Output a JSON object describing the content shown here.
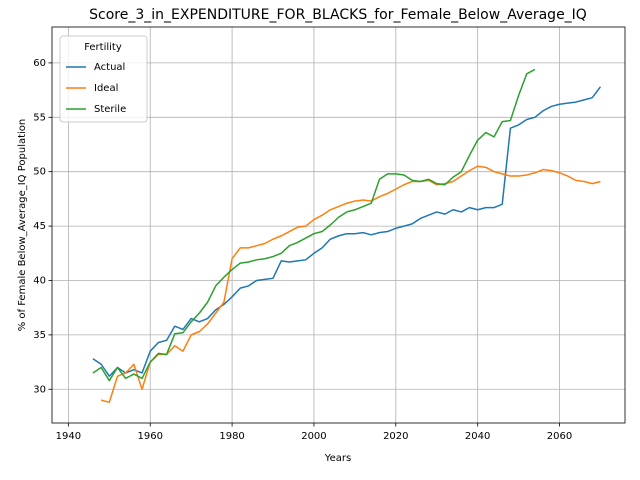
{
  "chart_data": {
    "type": "line",
    "title": "Score_3_in_EXPENDITURE_FOR_BLACKS_for_Female_Below_Average_IQ",
    "x_label": "Years",
    "y_label": "% of Female Below_Average_IQ Population",
    "legend_title": "Fertility",
    "legend_loc": "upper left",
    "grid": true,
    "x": [
      1946,
      1948,
      1950,
      1952,
      1954,
      1956,
      1958,
      1960,
      1962,
      1964,
      1966,
      1968,
      1970,
      1972,
      1974,
      1976,
      1978,
      1980,
      1982,
      1984,
      1986,
      1988,
      1990,
      1992,
      1994,
      1996,
      1998,
      2000,
      2002,
      2004,
      2006,
      2008,
      2010,
      2012,
      2014,
      2016,
      2018,
      2020,
      2022,
      2024,
      2026,
      2028,
      2030,
      2032,
      2034,
      2036,
      2038,
      2040,
      2042,
      2044,
      2046,
      2048,
      2050,
      2052,
      2054,
      2056,
      2058,
      2060,
      2062,
      2064,
      2066,
      2068,
      2070
    ],
    "series": [
      {
        "name": "Actual",
        "color": "#1f77b4",
        "values": [
          32.8,
          32.3,
          31.2,
          32,
          31.5,
          31.8,
          31.5,
          33.5,
          34.3,
          34.5,
          35.8,
          35.5,
          36.5,
          36.2,
          36.5,
          37.3,
          37.8,
          38.5,
          39.3,
          39.5,
          40,
          40.1,
          40.2,
          41.8,
          41.7,
          41.8,
          41.9,
          42.5,
          43,
          43.8,
          44.1,
          44.3,
          44.3,
          44.4,
          44.2,
          44.4,
          44.5,
          44.8,
          45,
          45.2,
          45.7,
          46,
          46.3,
          46.1,
          46.5,
          46.3,
          46.7,
          46.5,
          46.7,
          46.7,
          47,
          54,
          54.3,
          54.8,
          55,
          55.6,
          56,
          56.2,
          56.3,
          56.4,
          56.6,
          56.8,
          57.8
        ]
      },
      {
        "name": "Ideal",
        "color": "#ff7f0e",
        "values": [
          null,
          29,
          28.8,
          31.2,
          31.5,
          32.3,
          30,
          32.5,
          33.2,
          33.2,
          34,
          33.5,
          35,
          35.3,
          36,
          37,
          38,
          42,
          43,
          43,
          43.2,
          43.4,
          43.8,
          44.1,
          44.5,
          44.9,
          45,
          45.6,
          46,
          46.5,
          46.8,
          47.1,
          47.3,
          47.4,
          47.3,
          47.7,
          48,
          48.4,
          48.8,
          49.1,
          49.1,
          49.2,
          48.8,
          48.9,
          49.1,
          49.6,
          50.1,
          50.5,
          50.4,
          50,
          49.8,
          49.6,
          49.6,
          49.7,
          49.9,
          50.2,
          50.1,
          49.9,
          49.6,
          49.2,
          49.1,
          48.9,
          49.1
        ]
      },
      {
        "name": "Sterile",
        "color": "#2ca02c",
        "values": [
          31.5,
          32,
          30.8,
          32,
          31,
          31.4,
          31,
          32.5,
          33.3,
          33.2,
          35.1,
          35.2,
          36.2,
          37,
          38,
          39.5,
          40.3,
          41,
          41.6,
          41.7,
          41.9,
          42,
          42.2,
          42.5,
          43.2,
          43.5,
          43.9,
          44.3,
          44.5,
          45.1,
          45.8,
          46.3,
          46.5,
          46.8,
          47.1,
          49.3,
          49.8,
          49.8,
          49.7,
          49.2,
          49.1,
          49.3,
          48.9,
          48.8,
          49.5,
          50,
          51.5,
          52.9,
          53.6,
          53.2,
          54.6,
          54.7,
          57,
          59,
          59.4,
          null,
          null,
          null,
          null,
          null,
          null,
          null,
          null
        ]
      }
    ],
    "xlim": [
      1936,
      2076
    ],
    "ylim": [
      26.9,
      63.3
    ],
    "xticks": [
      1940,
      1960,
      1980,
      2000,
      2020,
      2040,
      2060
    ],
    "yticks": [
      30,
      35,
      40,
      45,
      50,
      55,
      60
    ]
  }
}
